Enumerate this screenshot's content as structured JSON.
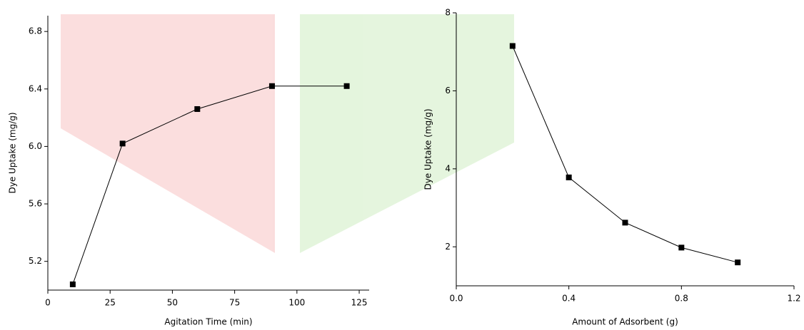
{
  "chart_data": [
    {
      "type": "line",
      "x_label": "Agitation Time (min)",
      "y_label": "Dye Uptake (mg/g)",
      "x": [
        10,
        30,
        60,
        90,
        120
      ],
      "values": [
        5.04,
        6.02,
        6.26,
        6.42,
        6.42
      ],
      "color": "#000000",
      "xlim": [
        0,
        129
      ],
      "ylim": [
        5.0,
        6.91
      ],
      "xticks": [
        0,
        25,
        50,
        75,
        100,
        125
      ],
      "yticks": [
        5.2,
        5.6,
        6.4,
        6.8,
        {
          "value": 6,
          "label": "6.0"
        }
      ]
    },
    {
      "type": "line",
      "x_label": "Amount of Adsorbent (g)",
      "y_label": "Dye Uptake (mg/g)",
      "x": [
        0.2,
        0.4,
        0.6,
        0.8,
        1.0
      ],
      "values": [
        7.15,
        3.78,
        2.62,
        1.98,
        1.6
      ],
      "color": "#000000",
      "xlim": [
        0,
        1.2
      ],
      "ylim": [
        1,
        8
      ],
      "xticks": [
        {
          "value": 0,
          "label": "0.0"
        },
        0.4,
        0.8,
        1.2
      ],
      "yticks": [
        2,
        4,
        6,
        8
      ]
    }
  ]
}
